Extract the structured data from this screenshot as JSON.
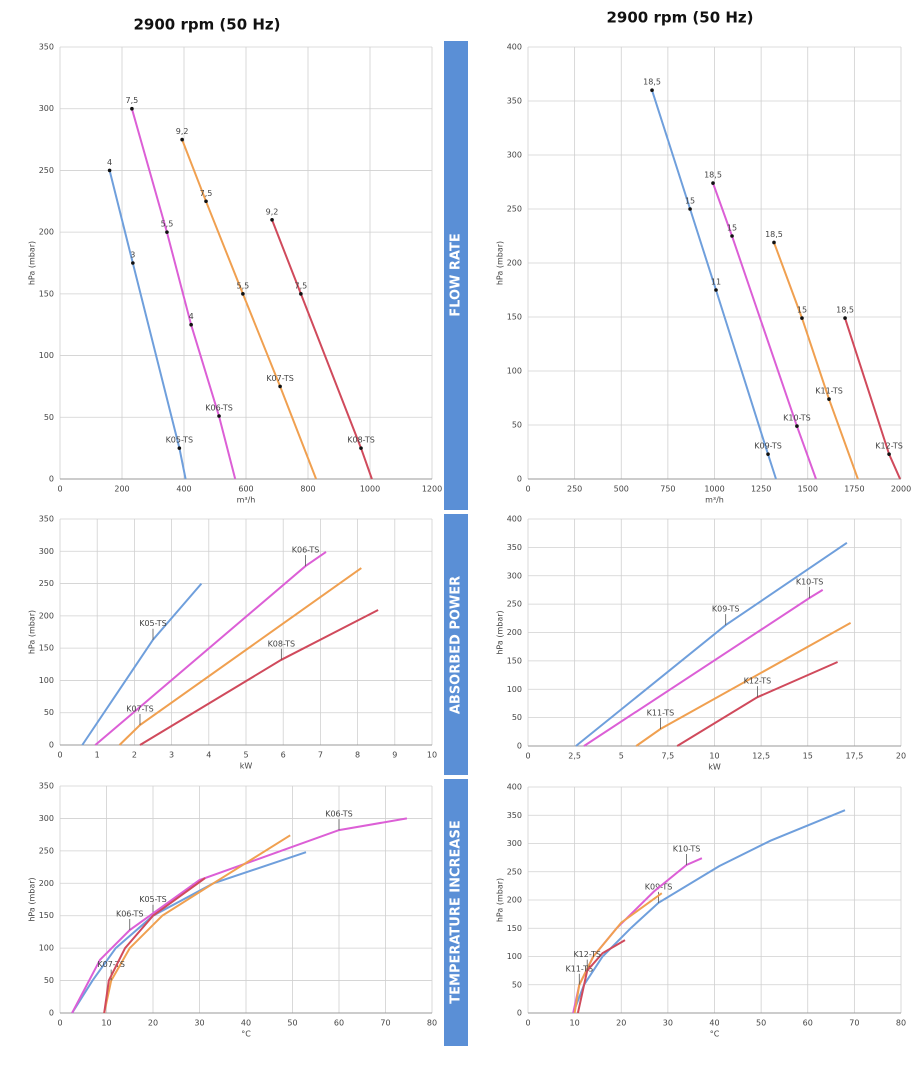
{
  "headers": [
    "2900 rpm (50 Hz)",
    "2900 rpm (50 Hz)"
  ],
  "sections": [
    "FLOW RATE",
    "ABSORBED POWER",
    "TEMPERATURE INCREASE"
  ],
  "chart_data": [
    {
      "type": "line",
      "xlabel": "m³/h",
      "ylabel": "hPa (mbar)",
      "xlim": [
        0,
        1200
      ],
      "ylim": [
        0,
        350
      ],
      "xticks": [
        0,
        200,
        400,
        600,
        800,
        1000,
        1200
      ],
      "yticks": [
        0,
        50,
        100,
        150,
        200,
        250,
        300,
        350
      ],
      "grid": true,
      "markers": true,
      "series": [
        {
          "name": "K05-TS",
          "color": "#6f9fdc",
          "x": [
            160,
            235,
            385,
            405
          ],
          "values": [
            250,
            175,
            25,
            0
          ],
          "point_labels": [
            "4",
            "3",
            "K05-TS",
            null
          ]
        },
        {
          "name": "K06-TS",
          "color": "#dc5fd6",
          "x": [
            232,
            345,
            423,
            513,
            565
          ],
          "values": [
            300,
            200,
            125,
            51,
            0
          ],
          "point_labels": [
            "7,5",
            "5,5",
            "4",
            "K06-TS",
            null
          ]
        },
        {
          "name": "K07-TS",
          "color": "#f0a050",
          "x": [
            394,
            471,
            590,
            710,
            826
          ],
          "values": [
            275,
            225,
            150,
            75,
            0
          ],
          "point_labels": [
            "9,2",
            "7,5",
            "5,5",
            "K07-TS",
            null
          ]
        },
        {
          "name": "K08-TS",
          "color": "#d04a5c",
          "x": [
            684,
            777,
            971,
            1006
          ],
          "values": [
            210,
            150,
            25,
            0
          ],
          "point_labels": [
            "9,2",
            "7,5",
            "K08-TS",
            null
          ]
        }
      ]
    },
    {
      "type": "line",
      "xlabel": "m³/h",
      "ylabel": "hPa (mbar)",
      "xlim": [
        0,
        2000
      ],
      "ylim": [
        0,
        400
      ],
      "xticks": [
        0,
        250,
        500,
        750,
        1000,
        1250,
        1500,
        1750,
        2000
      ],
      "yticks": [
        0,
        50,
        100,
        150,
        200,
        250,
        300,
        350,
        400
      ],
      "grid": true,
      "markers": true,
      "series": [
        {
          "name": "K09-TS",
          "color": "#6f9fdc",
          "x": [
            665,
            869,
            1008,
            1287,
            1330
          ],
          "values": [
            360,
            250,
            175,
            23,
            0
          ],
          "point_labels": [
            "18,5",
            "15",
            "11",
            "K09-TS",
            null
          ]
        },
        {
          "name": "K10-TS",
          "color": "#dc5fd6",
          "x": [
            992,
            1094,
            1442,
            1544
          ],
          "values": [
            274,
            225,
            49,
            0
          ],
          "point_labels": [
            "18,5",
            "15",
            "K10-TS",
            null
          ]
        },
        {
          "name": "K11-TS",
          "color": "#f0a050",
          "x": [
            1319,
            1469,
            1614,
            1769
          ],
          "values": [
            219,
            149,
            74,
            0
          ],
          "point_labels": [
            "18,5",
            "15",
            "K11-TS",
            null
          ]
        },
        {
          "name": "K12-TS",
          "color": "#d04a5c",
          "x": [
            1700,
            1936,
            1995
          ],
          "values": [
            149,
            23,
            0
          ],
          "point_labels": [
            "18,5",
            "K12-TS",
            null
          ]
        }
      ]
    },
    {
      "type": "line",
      "xlabel": "kW",
      "ylabel": "hPa (mbar)",
      "xlim": [
        0,
        10
      ],
      "ylim": [
        0,
        350
      ],
      "xticks": [
        0,
        1,
        2,
        3,
        4,
        5,
        6,
        7,
        8,
        9,
        10
      ],
      "yticks": [
        0,
        50,
        100,
        150,
        200,
        250,
        300,
        350
      ],
      "grid": true,
      "markers": false,
      "series": [
        {
          "name": "K05-TS",
          "color": "#6f9fdc",
          "x": [
            0.6,
            2.5,
            3.8
          ],
          "values": [
            0,
            163,
            250
          ],
          "point_labels": [
            null,
            "K05-TS",
            null
          ]
        },
        {
          "name": "K06-TS",
          "color": "#dc5fd6",
          "x": [
            0.95,
            6.6,
            7.15
          ],
          "values": [
            0,
            277,
            299
          ],
          "point_labels": [
            null,
            "K06-TS",
            null
          ]
        },
        {
          "name": "K07-TS",
          "color": "#f0a050",
          "x": [
            1.6,
            2.15,
            8.1
          ],
          "values": [
            0,
            31,
            274
          ],
          "point_labels": [
            null,
            "K07-TS",
            null
          ]
        },
        {
          "name": "K08-TS",
          "color": "#d04a5c",
          "x": [
            2.15,
            5.95,
            8.55
          ],
          "values": [
            0,
            132,
            209
          ],
          "point_labels": [
            null,
            "K08-TS",
            null
          ]
        }
      ]
    },
    {
      "type": "line",
      "xlabel": "kW",
      "ylabel": "hPa (mbar)",
      "xlim": [
        0,
        20
      ],
      "ylim": [
        0,
        400
      ],
      "xticks": [
        0,
        {
          "value": 2.5,
          "label": "2,5"
        },
        5,
        {
          "value": 7.5,
          "label": "7,5"
        },
        10,
        {
          "value": 12.5,
          "label": "12,5"
        },
        15,
        {
          "value": 17.5,
          "label": "17,5"
        },
        20
      ],
      "yticks": [
        0,
        50,
        100,
        150,
        200,
        250,
        300,
        350,
        400
      ],
      "grid": true,
      "markers": false,
      "series": [
        {
          "name": "K09-TS",
          "color": "#6f9fdc",
          "x": [
            2.57,
            10.6,
            17.1
          ],
          "values": [
            0,
            213,
            358
          ],
          "point_labels": [
            null,
            "K09-TS",
            null
          ]
        },
        {
          "name": "K10-TS",
          "color": "#dc5fd6",
          "x": [
            3.0,
            15.1,
            15.8
          ],
          "values": [
            0,
            261,
            275
          ],
          "point_labels": [
            null,
            "K10-TS",
            null
          ]
        },
        {
          "name": "K11-TS",
          "color": "#f0a050",
          "x": [
            5.8,
            7.1,
            17.3
          ],
          "values": [
            0,
            30,
            217
          ],
          "point_labels": [
            null,
            "K11-TS",
            null
          ]
        },
        {
          "name": "K12-TS",
          "color": "#d04a5c",
          "x": [
            8.0,
            12.3,
            16.6
          ],
          "values": [
            0,
            86,
            148
          ],
          "point_labels": [
            null,
            "K12-TS",
            null
          ]
        }
      ]
    },
    {
      "type": "line",
      "xlabel": "°C",
      "ylabel": "hPa (mbar)",
      "xlim": [
        0,
        80
      ],
      "ylim": [
        0,
        350
      ],
      "xticks": [
        0,
        10,
        20,
        30,
        40,
        50,
        60,
        70,
        80
      ],
      "yticks": [
        0,
        50,
        100,
        150,
        200,
        250,
        300,
        350
      ],
      "grid": true,
      "markers": false,
      "series": [
        {
          "name": "K05-TS",
          "color": "#6f9fdc",
          "x": [
            2.6,
            7,
            12,
            20,
            33,
            52.9
          ],
          "values": [
            0,
            50,
            100,
            150,
            200,
            248
          ],
          "point_labels": [
            null,
            null,
            null,
            "K05-TS",
            null,
            null
          ]
        },
        {
          "name": "K06-TS",
          "color": "#dc5fd6",
          "x": [
            2.6,
            8.6,
            15,
            30,
            60,
            74.6
          ],
          "values": [
            0,
            82,
            128,
            205,
            282,
            300
          ],
          "point_labels": [
            null,
            null,
            "K06-TS",
            null,
            "K06-TS",
            null
          ]
        },
        {
          "name": "K07-TS",
          "color": "#f0a050",
          "x": [
            9.5,
            11,
            15,
            22,
            33,
            49.5
          ],
          "values": [
            0,
            50,
            100,
            150,
            200,
            274
          ],
          "point_labels": [
            null,
            "K07-TS",
            null,
            null,
            null,
            null
          ]
        },
        {
          "name": "K08-TS",
          "color": "#d04a5c",
          "x": [
            9.5,
            10.5,
            14,
            20,
            31.2
          ],
          "values": [
            0,
            50,
            100,
            150,
            208
          ],
          "point_labels": [
            null,
            null,
            null,
            null,
            null
          ]
        }
      ]
    },
    {
      "type": "line",
      "xlabel": "°C",
      "ylabel": "hPa (mbar)",
      "xlim": [
        0,
        80
      ],
      "ylim": [
        0,
        400
      ],
      "xticks": [
        0,
        10,
        20,
        30,
        40,
        50,
        60,
        70,
        80
      ],
      "yticks": [
        0,
        50,
        100,
        150,
        200,
        250,
        300,
        350,
        400
      ],
      "grid": true,
      "markers": false,
      "series": [
        {
          "name": "K09-TS",
          "color": "#6f9fdc",
          "x": [
            9.7,
            12,
            16,
            22,
            28,
            41,
            52,
            68
          ],
          "values": [
            0,
            50,
            100,
            150,
            195,
            260,
            305,
            359
          ],
          "point_labels": [
            null,
            null,
            null,
            null,
            "K09-TS",
            null,
            null,
            null
          ]
        },
        {
          "name": "K10-TS",
          "color": "#dc5fd6",
          "x": [
            9.7,
            11,
            14,
            19,
            27,
            34,
            37.3
          ],
          "values": [
            0,
            50,
            100,
            150,
            215,
            262,
            274
          ],
          "point_labels": [
            null,
            null,
            null,
            null,
            null,
            "K10-TS",
            null
          ]
        },
        {
          "name": "K11-TS",
          "color": "#f0a050",
          "x": [
            10,
            11,
            14,
            20,
            28.7
          ],
          "values": [
            0,
            50,
            100,
            160,
            212
          ],
          "point_labels": [
            null,
            "K11-TS",
            null,
            null,
            null
          ]
        },
        {
          "name": "K12-TS",
          "color": "#d04a5c",
          "x": [
            10.7,
            12.7,
            16,
            20.8
          ],
          "values": [
            0,
            75,
            106,
            129
          ],
          "point_labels": [
            null,
            "K12-TS",
            null,
            null
          ]
        }
      ]
    }
  ]
}
